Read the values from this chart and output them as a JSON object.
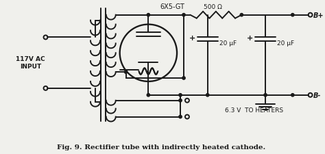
{
  "title": "Fig. 9. Rectifier tube with indirectly heated cathode.",
  "title_fontsize": 7.5,
  "bg_color": "#f0f0ec",
  "line_color": "#1a1a1a",
  "lw": 1.4,
  "tube_label": "6X5-GT",
  "resistor_label": "500 Ω",
  "cap1_label": "20 μF",
  "cap2_label": "20 μF",
  "input_label": "117V AC\nINPUT",
  "heater_label": "6.3 V  TO HEATERS",
  "bplus_label": "B+",
  "bminus_label": "B-"
}
